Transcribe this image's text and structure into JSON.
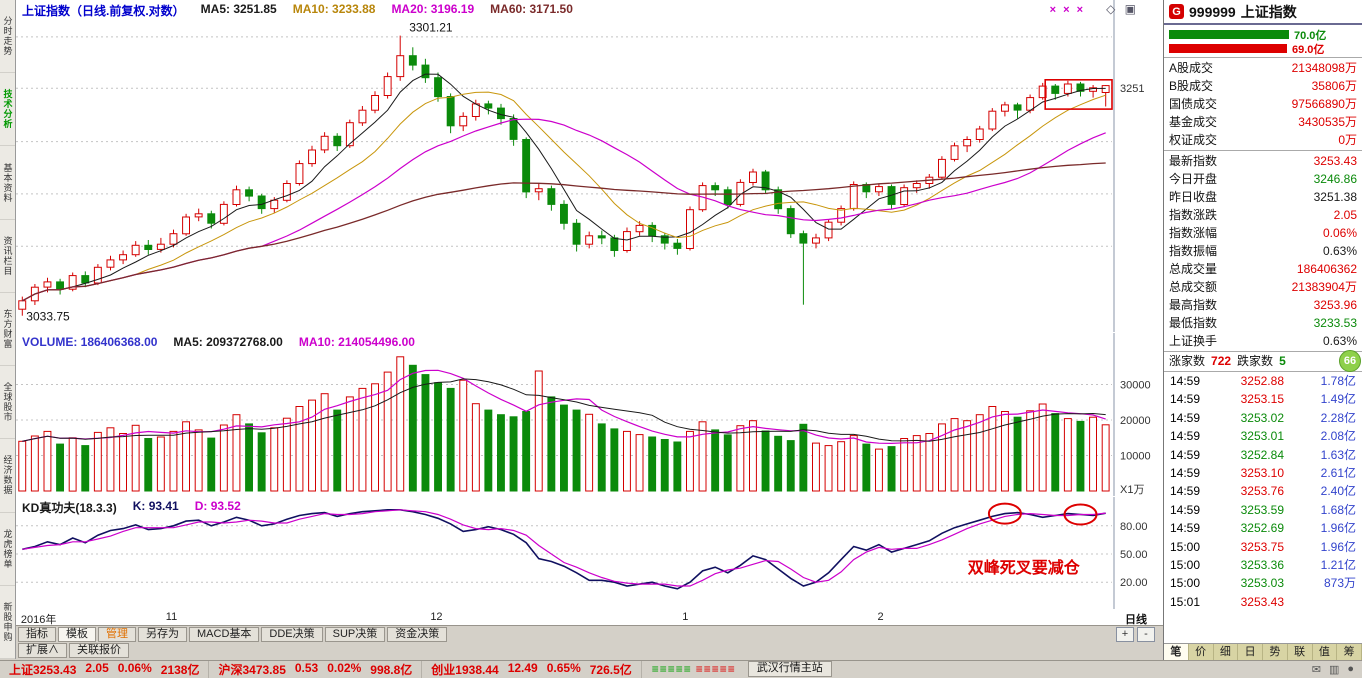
{
  "left_sidebar": {
    "items": [
      {
        "label": "分时走势",
        "active": false
      },
      {
        "label": "技术分析",
        "active": true
      },
      {
        "label": "基本资料",
        "active": false
      },
      {
        "label": "资讯栏目",
        "active": false
      },
      {
        "label": "东方财富",
        "active": false
      },
      {
        "label": "全球股市",
        "active": false
      },
      {
        "label": "经济数据",
        "active": false
      },
      {
        "label": "龙虎榜单",
        "active": false
      },
      {
        "label": "新股申购",
        "active": false
      }
    ]
  },
  "main_chart": {
    "header_tokens": [
      {
        "text": "上证指数（日线.前复权.对数）",
        "color": "#0000cc"
      },
      {
        "text": "MA5: 3251.85",
        "color": "#1a1a1a"
      },
      {
        "text": "MA10: 3233.88",
        "color": "#b8860b"
      },
      {
        "text": "MA20: 3196.19",
        "color": "#cc00cc"
      },
      {
        "text": "MA60: 3171.50",
        "color": "#7a2a2a"
      }
    ],
    "marks": "× × ×",
    "corner_icons": "◇ ▣",
    "period": "日线",
    "zoom_in": "+",
    "zoom_out": "-"
  },
  "volume_pane": {
    "header_tokens": [
      {
        "text": "VOLUME: 186406368.00",
        "color": "#3333cc"
      },
      {
        "text": "MA5: 209372768.00",
        "color": "#1a1a1a"
      },
      {
        "text": "MA10: 214054496.00",
        "color": "#cc00cc"
      }
    ]
  },
  "kd_pane": {
    "header_tokens": [
      {
        "text": "KD真功夫(18.3.3)",
        "color": "#1a1a1a"
      },
      {
        "text": "K: 93.41",
        "color": "#101060"
      },
      {
        "text": "D: 93.52",
        "color": "#cc00cc"
      }
    ]
  },
  "bottom_tabs": {
    "items": [
      {
        "label": "指标"
      },
      {
        "label": "模板",
        "active": true
      },
      {
        "label": "管理",
        "color": "#e07000"
      },
      {
        "label": "另存为"
      },
      {
        "label": "MACD基本"
      },
      {
        "label": "DDE决策"
      },
      {
        "label": "SUP决策"
      },
      {
        "label": "资金决策"
      }
    ]
  },
  "secondary_tabs": {
    "items": [
      "扩展∧",
      "关联报价"
    ]
  },
  "status_bar": {
    "segments": [
      [
        {
          "text": "上证3253.43",
          "color": "#dd0000"
        },
        {
          "text": "2.05",
          "color": "#dd0000"
        },
        {
          "text": "0.06%",
          "color": "#dd0000"
        },
        {
          "text": "2138亿",
          "color": "#dd0000"
        }
      ],
      [
        {
          "text": "沪深3473.85",
          "color": "#dd0000"
        },
        {
          "text": "0.53",
          "color": "#dd0000"
        },
        {
          "text": "0.02%",
          "color": "#dd0000"
        },
        {
          "text": "998.8亿",
          "color": "#dd0000"
        }
      ],
      [
        {
          "text": "创业1938.44",
          "color": "#dd0000"
        },
        {
          "text": "12.49",
          "color": "#dd0000"
        },
        {
          "text": "0.65%",
          "color": "#dd0000"
        },
        {
          "text": "726.5亿",
          "color": "#dd0000"
        }
      ]
    ],
    "signal_green": "≡≡≡≡≡",
    "signal_red": "≡≡≡≡≡",
    "server": "武汉行情主站",
    "icons": [
      "✉",
      "▥",
      "●"
    ]
  },
  "right_panel": {
    "header": {
      "badge": "G",
      "code": "999999",
      "name": "上证指数"
    },
    "bars": [
      {
        "label": "70.0亿",
        "color": "#0a8a0a",
        "width": 0.73
      },
      {
        "label": "69.0亿",
        "color": "#dd0000",
        "width": 0.715
      }
    ],
    "section_a": [
      {
        "label": "A股成交",
        "value": "21348098万",
        "color": "#dd0000"
      },
      {
        "label": "B股成交",
        "value": "35806万",
        "color": "#dd0000"
      },
      {
        "label": "国债成交",
        "value": "97566890万",
        "color": "#dd0000"
      },
      {
        "label": "基金成交",
        "value": "3430535万",
        "color": "#dd0000"
      },
      {
        "label": "权证成交",
        "value": "0万",
        "color": "#dd0000"
      }
    ],
    "section_b": [
      {
        "label": "最新指数",
        "value": "3253.43",
        "color": "#dd0000"
      },
      {
        "label": "今日开盘",
        "value": "3246.86",
        "color": "#0a8a0a"
      },
      {
        "label": "昨日收盘",
        "value": "3251.38",
        "color": "#1a1a1a"
      },
      {
        "label": "指数涨跌",
        "value": "2.05",
        "color": "#dd0000"
      },
      {
        "label": "指数涨幅",
        "value": "0.06%",
        "color": "#dd0000"
      },
      {
        "label": "指数振幅",
        "value": "0.63%",
        "color": "#1a1a1a"
      },
      {
        "label": "总成交量",
        "value": "186406362",
        "color": "#dd0000"
      },
      {
        "label": "总成交额",
        "value": "21383904万",
        "color": "#dd0000"
      },
      {
        "label": "最高指数",
        "value": "3253.96",
        "color": "#dd0000"
      },
      {
        "label": "最低指数",
        "value": "3233.53",
        "color": "#0a8a0a"
      },
      {
        "label": "上证换手",
        "value": "0.63%",
        "color": "#1a1a1a"
      }
    ],
    "updown": {
      "up_label": "涨家数",
      "up_value": "722",
      "down_label": "跌家数",
      "down_value": "5",
      "badge": "66"
    },
    "ticks": [
      {
        "time": "14:59",
        "price": "3252.88",
        "price_color": "#dd0000",
        "vol": "1.78亿",
        "vol_color": "#3344cc"
      },
      {
        "time": "14:59",
        "price": "3253.15",
        "price_color": "#dd0000",
        "vol": "1.49亿",
        "vol_color": "#3344cc"
      },
      {
        "time": "14:59",
        "price": "3253.02",
        "price_color": "#0a8a0a",
        "vol": "2.28亿",
        "vol_color": "#3344cc"
      },
      {
        "time": "14:59",
        "price": "3253.01",
        "price_color": "#0a8a0a",
        "vol": "2.08亿",
        "vol_color": "#3344cc"
      },
      {
        "time": "14:59",
        "price": "3252.84",
        "price_color": "#0a8a0a",
        "vol": "1.63亿",
        "vol_color": "#3344cc"
      },
      {
        "time": "14:59",
        "price": "3253.10",
        "price_color": "#dd0000",
        "vol": "2.61亿",
        "vol_color": "#3344cc"
      },
      {
        "time": "14:59",
        "price": "3253.76",
        "price_color": "#dd0000",
        "vol": "2.40亿",
        "vol_color": "#3344cc"
      },
      {
        "time": "14:59",
        "price": "3253.59",
        "price_color": "#0a8a0a",
        "vol": "1.68亿",
        "vol_color": "#3344cc"
      },
      {
        "time": "14:59",
        "price": "3252.69",
        "price_color": "#0a8a0a",
        "vol": "1.96亿",
        "vol_color": "#3344cc"
      },
      {
        "time": "15:00",
        "price": "3253.75",
        "price_color": "#dd0000",
        "vol": "1.96亿",
        "vol_color": "#3344cc"
      },
      {
        "time": "15:00",
        "price": "3253.36",
        "price_color": "#0a8a0a",
        "vol": "1.21亿",
        "vol_color": "#3344cc"
      },
      {
        "time": "15:00",
        "price": "3253.03",
        "price_color": "#0a8a0a",
        "vol": "873万",
        "vol_color": "#3344cc"
      },
      {
        "time": "15:01",
        "price": "3253.43",
        "price_color": "#dd0000",
        "vol": "",
        "vol_color": "#3344cc"
      }
    ],
    "tabs": [
      {
        "label": "笔",
        "active": true
      },
      {
        "label": "价"
      },
      {
        "label": "细"
      },
      {
        "label": "日"
      },
      {
        "label": "势"
      },
      {
        "label": "联"
      },
      {
        "label": "值"
      },
      {
        "label": "筹"
      }
    ]
  },
  "chart_data": {
    "type": "candlestick",
    "title": "上证指数（日线.前复权.对数）",
    "x_labels": [
      {
        "text": "2016年",
        "index": 1
      },
      {
        "text": "11",
        "index": 12.5
      },
      {
        "text": "12",
        "index": 33.5
      },
      {
        "text": "1",
        "index": 53.5
      },
      {
        "text": "2",
        "index": 69
      }
    ],
    "price_axis": {
      "min": 3022,
      "max": 3318,
      "grid": [
        3100,
        3150,
        3200,
        3251,
        3300
      ],
      "label": "3251",
      "label_value": 3251
    },
    "high_label": {
      "text": "3301.21",
      "index": 30,
      "value": 3301.21
    },
    "low_label": {
      "text": "3033.75",
      "index": 0,
      "value": 3033.75
    },
    "ohlc": [
      [
        3040,
        3052,
        3033.75,
        3048
      ],
      [
        3048,
        3064,
        3044,
        3061
      ],
      [
        3061,
        3070,
        3056,
        3066
      ],
      [
        3066,
        3069,
        3054,
        3059
      ],
      [
        3059,
        3075,
        3057,
        3072
      ],
      [
        3072,
        3076,
        3061,
        3065
      ],
      [
        3065,
        3083,
        3063,
        3080
      ],
      [
        3080,
        3091,
        3077,
        3087
      ],
      [
        3087,
        3096,
        3083,
        3092
      ],
      [
        3092,
        3105,
        3090,
        3101
      ],
      [
        3101,
        3106,
        3092,
        3097
      ],
      [
        3097,
        3108,
        3094,
        3102
      ],
      [
        3102,
        3116,
        3099,
        3112
      ],
      [
        3112,
        3131,
        3110,
        3128
      ],
      [
        3128,
        3136,
        3124,
        3131
      ],
      [
        3131,
        3134,
        3117,
        3122
      ],
      [
        3122,
        3143,
        3120,
        3140
      ],
      [
        3140,
        3158,
        3138,
        3154
      ],
      [
        3154,
        3157,
        3143,
        3148
      ],
      [
        3148,
        3150,
        3131,
        3136
      ],
      [
        3136,
        3147,
        3132,
        3144
      ],
      [
        3144,
        3163,
        3142,
        3160
      ],
      [
        3160,
        3182,
        3158,
        3179
      ],
      [
        3179,
        3196,
        3176,
        3192
      ],
      [
        3192,
        3209,
        3189,
        3205
      ],
      [
        3205,
        3208,
        3191,
        3196
      ],
      [
        3196,
        3221,
        3194,
        3218
      ],
      [
        3218,
        3234,
        3215,
        3230
      ],
      [
        3230,
        3248,
        3227,
        3244
      ],
      [
        3244,
        3266,
        3241,
        3262
      ],
      [
        3262,
        3301.21,
        3258,
        3282
      ],
      [
        3282,
        3290,
        3268,
        3273
      ],
      [
        3273,
        3279,
        3256,
        3261
      ],
      [
        3261,
        3266,
        3238,
        3243
      ],
      [
        3243,
        3246,
        3208,
        3215
      ],
      [
        3215,
        3228,
        3210,
        3224
      ],
      [
        3224,
        3240,
        3220,
        3236
      ],
      [
        3236,
        3239,
        3226,
        3232
      ],
      [
        3232,
        3236,
        3216,
        3222
      ],
      [
        3222,
        3226,
        3196,
        3202
      ],
      [
        3202,
        3204,
        3146,
        3152
      ],
      [
        3152,
        3160,
        3144,
        3155
      ],
      [
        3155,
        3158,
        3134,
        3140
      ],
      [
        3140,
        3144,
        3116,
        3122
      ],
      [
        3122,
        3126,
        3095,
        3102
      ],
      [
        3102,
        3114,
        3098,
        3110
      ],
      [
        3110,
        3115,
        3102,
        3108
      ],
      [
        3108,
        3111,
        3090,
        3096
      ],
      [
        3096,
        3118,
        3094,
        3114
      ],
      [
        3114,
        3124,
        3110,
        3120
      ],
      [
        3120,
        3123,
        3104,
        3110
      ],
      [
        3110,
        3113,
        3097,
        3103
      ],
      [
        3103,
        3107,
        3092,
        3098
      ],
      [
        3098,
        3138,
        3096,
        3135
      ],
      [
        3135,
        3161,
        3133,
        3158
      ],
      [
        3158,
        3161,
        3148,
        3154
      ],
      [
        3154,
        3157,
        3136,
        3140
      ],
      [
        3140,
        3164,
        3138,
        3161
      ],
      [
        3161,
        3174,
        3158,
        3171
      ],
      [
        3171,
        3173,
        3150,
        3154
      ],
      [
        3154,
        3157,
        3131,
        3136
      ],
      [
        3136,
        3139,
        3108,
        3112
      ],
      [
        3112,
        3115,
        3044.29,
        3103
      ],
      [
        3103,
        3112,
        3098,
        3108
      ],
      [
        3108,
        3126,
        3105,
        3123
      ],
      [
        3123,
        3139,
        3120,
        3136
      ],
      [
        3136,
        3162,
        3134,
        3159
      ],
      [
        3159,
        3161,
        3146,
        3152
      ],
      [
        3152,
        3160,
        3148,
        3157
      ],
      [
        3157,
        3159,
        3136,
        3140
      ],
      [
        3140,
        3159,
        3138,
        3156
      ],
      [
        3156,
        3163,
        3151,
        3160
      ],
      [
        3160,
        3169,
        3155,
        3166
      ],
      [
        3166,
        3186,
        3164,
        3183
      ],
      [
        3183,
        3199,
        3181,
        3196
      ],
      [
        3196,
        3205,
        3190,
        3202
      ],
      [
        3202,
        3215,
        3199,
        3212
      ],
      [
        3212,
        3232,
        3210,
        3229
      ],
      [
        3229,
        3238,
        3224,
        3235
      ],
      [
        3235,
        3237,
        3222,
        3230
      ],
      [
        3230,
        3245,
        3227,
        3242
      ],
      [
        3242,
        3256,
        3240,
        3253
      ],
      [
        3253,
        3255,
        3240,
        3246
      ],
      [
        3246,
        3258,
        3243,
        3255
      ],
      [
        3255,
        3257,
        3243,
        3248
      ],
      [
        3248,
        3254,
        3242,
        3251.38
      ],
      [
        3246.86,
        3253.96,
        3233.53,
        3253.43
      ]
    ],
    "volume": [
      14000,
      15500,
      16800,
      13200,
      15000,
      12800,
      16500,
      17800,
      16200,
      18500,
      14800,
      15200,
      16800,
      19500,
      17200,
      14900,
      18600,
      21500,
      18900,
      16400,
      17800,
      20500,
      23800,
      25600,
      27400,
      22800,
      26500,
      28900,
      30200,
      33500,
      37800,
      35400,
      32800,
      30500,
      28900,
      31200,
      24600,
      22800,
      21500,
      20900,
      22400,
      33800,
      26500,
      24200,
      22800,
      21600,
      18900,
      17500,
      16800,
      15900,
      15200,
      14500,
      13800,
      16800,
      19500,
      17200,
      15800,
      18400,
      19800,
      16900,
      15400,
      14200,
      18800,
      13500,
      12800,
      13900,
      15600,
      13200,
      11800,
      12500,
      14800,
      15600,
      16200,
      18900,
      20400,
      19800,
      21500,
      23800,
      22400,
      20800,
      22600,
      24500,
      21800,
      20400,
      19600,
      20800,
      18640
    ],
    "volume_axis": {
      "max": 40000,
      "grid": [
        30000,
        20000,
        10000
      ],
      "labels": [
        "30000",
        "20000",
        "10000"
      ],
      "unit": "X1万"
    },
    "kd": {
      "k": [
        55,
        58,
        63,
        60,
        67,
        62,
        70,
        75,
        77,
        81,
        76,
        77,
        80,
        85,
        86,
        80,
        84,
        89,
        86,
        80,
        82,
        87,
        91,
        93,
        94,
        90,
        93,
        95,
        96,
        97,
        97,
        95,
        92,
        88,
        82,
        74,
        76,
        79,
        76,
        71,
        62,
        45,
        42,
        37,
        30,
        22,
        22,
        20,
        16,
        18,
        20,
        16,
        13,
        20,
        32,
        36,
        30,
        38,
        48,
        44,
        34,
        24,
        16,
        20,
        30,
        44,
        58,
        54,
        60,
        52,
        56,
        60,
        64,
        72,
        78,
        82,
        86,
        90,
        93,
        94,
        92,
        89,
        91,
        93,
        92,
        91,
        93.41
      ],
      "d": [
        55,
        57,
        59,
        60,
        63,
        63,
        66,
        69,
        74,
        78,
        78,
        78,
        78,
        81,
        84,
        84,
        83,
        84,
        86,
        85,
        83,
        83,
        87,
        90,
        93,
        92,
        92,
        93,
        95,
        96,
        97,
        96,
        95,
        92,
        87,
        81,
        77,
        76,
        77,
        75,
        70,
        59,
        50,
        41,
        36,
        30,
        25,
        21,
        19,
        18,
        18,
        18,
        16,
        16,
        22,
        29,
        33,
        35,
        39,
        43,
        42,
        34,
        25,
        20,
        22,
        31,
        44,
        52,
        57,
        55,
        56,
        56,
        60,
        65,
        71,
        77,
        82,
        86,
        90,
        92,
        93,
        92,
        91,
        91,
        92,
        92,
        93.52
      ],
      "grid": [
        80,
        50,
        20
      ],
      "labels": [
        "80.00",
        "50.00",
        "20.00"
      ]
    },
    "annotations": {
      "box": {
        "i0": 81.7,
        "i1": 87,
        "p0": 3231,
        "p1": 3259,
        "color": "#dd0000"
      },
      "circles": [
        {
          "index": 78,
          "series": "k"
        },
        {
          "index": 84,
          "series": "k"
        }
      ],
      "kd_text": {
        "text": "双峰死叉要减仓",
        "index": 79.5,
        "value": 30,
        "color": "#dd0000"
      }
    },
    "colors": {
      "up": "#d40000",
      "down": "#0b8a0b",
      "ma5": "#1a1a1a",
      "ma10": "#c8960c",
      "ma20": "#cc00cc",
      "ma60": "#7a2a2a",
      "k": "#101060",
      "d": "#cc00cc",
      "volma5": "#cc00cc",
      "volma10": "#1a1a1a"
    }
  }
}
